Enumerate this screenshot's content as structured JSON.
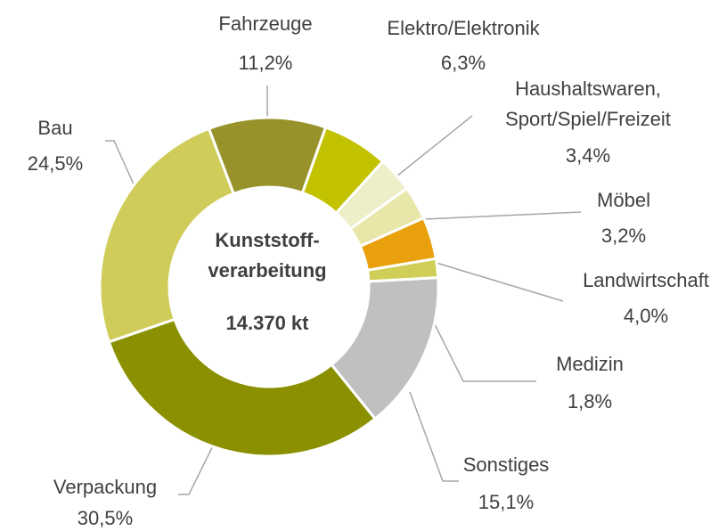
{
  "chart_data": {
    "type": "donut",
    "center_title": "Kunststoff-\nverarbeitung",
    "center_value": "14.370 kt",
    "categories": [
      "Fahrzeuge",
      "Elektro/Elektronik",
      "Haushaltswaren,\nSport/Spiel/Freizeit",
      "Möbel",
      "Landwirtschaft",
      "Medizin",
      "Sonstiges",
      "Verpackung",
      "Bau"
    ],
    "values": [
      11.2,
      6.3,
      3.4,
      3.2,
      4.0,
      1.8,
      15.1,
      30.5,
      24.5
    ],
    "value_labels": [
      "11,2%",
      "6,3%",
      "3,4%",
      "3,2%",
      "4,0%",
      "1,8%",
      "15,1%",
      "30,5%",
      "24,5%"
    ],
    "colors": [
      "#97932a",
      "#c2c200",
      "#eeeec8",
      "#e8e7a9",
      "#e8a00c",
      "#cfcf58",
      "#c0c0c0",
      "#8b9000",
      "#cfcc5a"
    ]
  }
}
